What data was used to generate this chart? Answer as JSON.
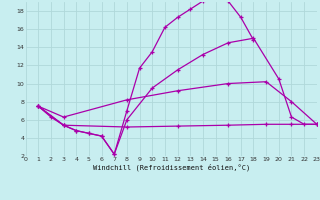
{
  "xlabel": "Windchill (Refroidissement éolien,°C)",
  "bg_color": "#c8eef0",
  "grid_color": "#b0d8da",
  "line_color": "#aa00aa",
  "xlim": [
    0,
    23
  ],
  "ylim": [
    2,
    19
  ],
  "xticks": [
    0,
    1,
    2,
    3,
    4,
    5,
    6,
    7,
    8,
    9,
    10,
    11,
    12,
    13,
    14,
    15,
    16,
    17,
    18,
    19,
    20,
    21,
    22,
    23
  ],
  "yticks": [
    2,
    4,
    6,
    8,
    10,
    12,
    14,
    16,
    18
  ],
  "lines": [
    {
      "x": [
        1,
        2,
        3,
        4,
        5,
        6,
        7,
        8,
        9,
        10,
        11,
        12,
        13,
        14,
        15,
        16,
        17,
        18
      ],
      "y": [
        7.5,
        6.3,
        5.4,
        4.8,
        4.5,
        4.2,
        2.2,
        7.0,
        11.7,
        13.5,
        16.2,
        17.3,
        18.2,
        19.1,
        19.3,
        19.1,
        17.3,
        14.8
      ]
    },
    {
      "x": [
        1,
        3,
        4,
        5,
        6,
        7,
        8,
        10,
        12,
        14,
        16,
        18,
        20,
        21,
        22,
        23
      ],
      "y": [
        7.5,
        5.4,
        4.8,
        4.5,
        4.2,
        2.2,
        6.0,
        9.5,
        11.5,
        13.2,
        14.5,
        15.0,
        10.5,
        6.3,
        5.5,
        5.5
      ]
    },
    {
      "x": [
        1,
        3,
        8,
        12,
        16,
        19,
        21,
        23
      ],
      "y": [
        7.5,
        6.3,
        8.2,
        9.2,
        10.0,
        10.2,
        8.0,
        5.5
      ]
    },
    {
      "x": [
        1,
        3,
        8,
        12,
        16,
        19,
        21,
        23
      ],
      "y": [
        7.5,
        5.4,
        5.2,
        5.3,
        5.4,
        5.5,
        5.5,
        5.5
      ]
    }
  ]
}
